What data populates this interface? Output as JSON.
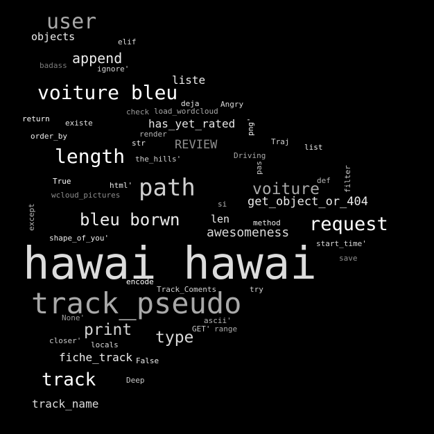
{
  "words": [
    {
      "text": "user",
      "color": "#a9a9a9"
    },
    {
      "text": "objects",
      "color": "#ececec"
    },
    {
      "text": "elif",
      "color": "#dcdcdc"
    },
    {
      "text": "append",
      "color": "#ececec"
    },
    {
      "text": "badass",
      "color": "#7d7d7d"
    },
    {
      "text": "ignore'",
      "color": "#d3d3d3"
    },
    {
      "text": "liste",
      "color": "#ececec"
    },
    {
      "text": "voiture bleu",
      "color": "#ffffff"
    },
    {
      "text": "deja",
      "color": "#e6e6e6"
    },
    {
      "text": "Angry",
      "color": "#d9d9d9"
    },
    {
      "text": "check",
      "color": "#9a9a9a"
    },
    {
      "text": "load_wordcloud",
      "color": "#a9a9a9"
    },
    {
      "text": "return",
      "color": "#ffffff"
    },
    {
      "text": "existe",
      "color": "#e0e0e0"
    },
    {
      "text": "has_yet_rated",
      "color": "#e6e6e6"
    },
    {
      "text": "png'",
      "color": "#ececec"
    },
    {
      "text": "order_by",
      "color": "#ececec"
    },
    {
      "text": "render",
      "color": "#b4b4b4"
    },
    {
      "text": "str",
      "color": "#ececec"
    },
    {
      "text": "REVIEW",
      "color": "#909090"
    },
    {
      "text": "Traj",
      "color": "#d3d3d3"
    },
    {
      "text": "list",
      "color": "#ececec"
    },
    {
      "text": "length",
      "color": "#ffffff"
    },
    {
      "text": "the_hills'",
      "color": "#cfcfcf"
    },
    {
      "text": "Driving",
      "color": "#a9a9a9"
    },
    {
      "text": "pas",
      "color": "#c8c8c8"
    },
    {
      "text": "filter",
      "color": "#c8c8c8"
    },
    {
      "text": "True",
      "color": "#ffffff"
    },
    {
      "text": "html'",
      "color": "#ececec"
    },
    {
      "text": "path",
      "color": "#cfcfcf"
    },
    {
      "text": "voiture",
      "color": "#a9a9a9"
    },
    {
      "text": "def",
      "color": "#b4b4b4"
    },
    {
      "text": "wcloud_pictures",
      "color": "#8d8d8d"
    },
    {
      "text": "except",
      "color": "#b4b4b4"
    },
    {
      "text": "si",
      "color": "#b4b4b4"
    },
    {
      "text": "get_object_or_404",
      "color": "#ececec"
    },
    {
      "text": "bleu borwn",
      "color": "#ececec"
    },
    {
      "text": "len",
      "color": "#ececec"
    },
    {
      "text": "method",
      "color": "#ececec"
    },
    {
      "text": "request",
      "color": "#ffffff"
    },
    {
      "text": "awesomeness",
      "color": "#d9d9d9"
    },
    {
      "text": "shape_of_you'",
      "color": "#ececec"
    },
    {
      "text": "start_time'",
      "color": "#d9d9d9"
    },
    {
      "text": "save",
      "color": "#909090"
    },
    {
      "text": "hawai hawai",
      "color": "#dcdcdc"
    },
    {
      "text": "encode",
      "color": "#ffffff"
    },
    {
      "text": "Track_Coments",
      "color": "#d3d3d3"
    },
    {
      "text": "try",
      "color": "#d3d3d3"
    },
    {
      "text": "track_pseudo",
      "color": "#a9a9a9"
    },
    {
      "text": "None'",
      "color": "#9a9a9a"
    },
    {
      "text": "ascii'",
      "color": "#b4b4b4"
    },
    {
      "text": "print",
      "color": "#d3d3d3"
    },
    {
      "text": "GET'",
      "color": "#c8c8c8"
    },
    {
      "text": "range",
      "color": "#a9a9a9"
    },
    {
      "text": "type",
      "color": "#d9d9d9"
    },
    {
      "text": "closer'",
      "color": "#c8c8c8"
    },
    {
      "text": "locals",
      "color": "#d9d9d9"
    },
    {
      "text": "fiche_track",
      "color": "#ececec"
    },
    {
      "text": "False",
      "color": "#ececec"
    },
    {
      "text": "track",
      "color": "#ffffff"
    },
    {
      "text": "Deep",
      "color": "#c8c8c8"
    },
    {
      "text": "track_name",
      "color": "#dcdcdc"
    }
  ]
}
